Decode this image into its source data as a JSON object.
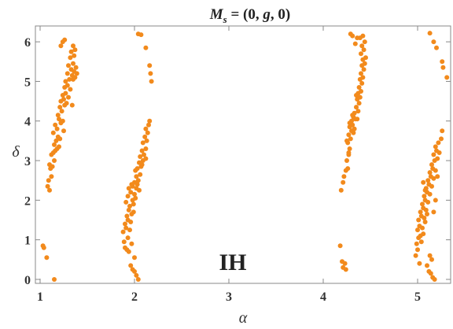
{
  "chart_data": {
    "type": "scatter",
    "title_parts": {
      "prefix": "M",
      "subscript": "s",
      "eq": " = (0, ",
      "mid": "g",
      "suffix": ", 0)"
    },
    "xlabel": "α",
    "ylabel": "δ",
    "annotation": "IH",
    "xlim": [
      0.95,
      5.35
    ],
    "ylim": [
      -0.1,
      6.4
    ],
    "xticks": [
      1,
      2,
      3,
      4,
      5
    ],
    "yticks": [
      0,
      1,
      2,
      3,
      4,
      5,
      6
    ],
    "xtick_labels": [
      "1",
      "2",
      "3",
      "4",
      "5"
    ],
    "ytick_labels": [
      "0",
      "1",
      "2",
      "3",
      "4",
      "5",
      "6"
    ],
    "grid": false,
    "marker_color": "#f28a1c",
    "frame_color": "#888888",
    "points": [
      [
        1.1,
        2.25
      ],
      [
        1.08,
        2.35
      ],
      [
        1.09,
        2.5
      ],
      [
        1.12,
        2.6
      ],
      [
        1.11,
        2.8
      ],
      [
        1.13,
        2.85
      ],
      [
        1.15,
        3.0
      ],
      [
        1.12,
        3.15
      ],
      [
        1.14,
        3.2
      ],
      [
        1.16,
        3.25
      ],
      [
        1.18,
        3.3
      ],
      [
        1.15,
        3.4
      ],
      [
        1.2,
        3.35
      ],
      [
        1.17,
        3.5
      ],
      [
        1.21,
        3.55
      ],
      [
        1.14,
        3.7
      ],
      [
        1.18,
        3.8
      ],
      [
        1.16,
        3.9
      ],
      [
        1.22,
        3.95
      ],
      [
        1.2,
        4.05
      ],
      [
        1.24,
        4.0
      ],
      [
        1.19,
        4.15
      ],
      [
        1.23,
        4.25
      ],
      [
        1.21,
        4.35
      ],
      [
        1.26,
        4.4
      ],
      [
        1.22,
        4.5
      ],
      [
        1.25,
        4.55
      ],
      [
        1.28,
        4.45
      ],
      [
        1.24,
        4.65
      ],
      [
        1.27,
        4.7
      ],
      [
        1.3,
        4.6
      ],
      [
        1.26,
        4.85
      ],
      [
        1.29,
        4.9
      ],
      [
        1.32,
        4.8
      ],
      [
        1.27,
        5.0
      ],
      [
        1.31,
        5.05
      ],
      [
        1.34,
        5.15
      ],
      [
        1.29,
        5.2
      ],
      [
        1.33,
        5.3
      ],
      [
        1.36,
        5.25
      ],
      [
        1.3,
        5.4
      ],
      [
        1.35,
        5.45
      ],
      [
        1.38,
        5.35
      ],
      [
        1.32,
        5.6
      ],
      [
        1.36,
        5.65
      ],
      [
        1.33,
        5.75
      ],
      [
        1.37,
        5.8
      ],
      [
        1.35,
        5.9
      ],
      [
        1.22,
        5.9
      ],
      [
        1.24,
        6.0
      ],
      [
        1.26,
        6.05
      ],
      [
        1.37,
        5.1
      ],
      [
        1.39,
        5.2
      ],
      [
        1.34,
        4.4
      ],
      [
        1.35,
        5.05
      ],
      [
        1.25,
        3.75
      ],
      [
        1.19,
        3.6
      ],
      [
        1.1,
        2.9
      ],
      [
        1.03,
        0.85
      ],
      [
        1.04,
        0.8
      ],
      [
        1.07,
        0.55
      ],
      [
        1.15,
        0.0
      ],
      [
        1.9,
        0.8
      ],
      [
        1.92,
        0.75
      ],
      [
        1.89,
        0.95
      ],
      [
        1.94,
        0.7
      ],
      [
        1.93,
        1.05
      ],
      [
        1.88,
        1.2
      ],
      [
        1.91,
        1.3
      ],
      [
        1.95,
        1.25
      ],
      [
        1.9,
        1.4
      ],
      [
        1.93,
        1.5
      ],
      [
        1.96,
        1.45
      ],
      [
        1.92,
        1.6
      ],
      [
        1.97,
        1.65
      ],
      [
        1.94,
        1.75
      ],
      [
        1.99,
        1.7
      ],
      [
        1.95,
        1.85
      ],
      [
        1.91,
        1.95
      ],
      [
        1.98,
        2.0
      ],
      [
        1.93,
        2.1
      ],
      [
        1.96,
        2.2
      ],
      [
        2.0,
        2.15
      ],
      [
        1.94,
        2.3
      ],
      [
        1.98,
        2.35
      ],
      [
        2.02,
        2.3
      ],
      [
        2.0,
        2.45
      ],
      [
        2.04,
        2.5
      ],
      [
        2.02,
        2.6
      ],
      [
        2.06,
        2.65
      ],
      [
        2.03,
        2.8
      ],
      [
        2.07,
        2.85
      ],
      [
        2.05,
        2.95
      ],
      [
        2.09,
        3.0
      ],
      [
        2.06,
        3.1
      ],
      [
        2.1,
        3.15
      ],
      [
        2.08,
        3.25
      ],
      [
        2.12,
        3.3
      ],
      [
        2.09,
        3.45
      ],
      [
        2.13,
        3.5
      ],
      [
        2.11,
        3.6
      ],
      [
        2.14,
        3.7
      ],
      [
        2.12,
        3.8
      ],
      [
        2.15,
        3.9
      ],
      [
        2.16,
        4.0
      ],
      [
        1.97,
        2.4
      ],
      [
        2.01,
        2.05
      ],
      [
        1.96,
        0.35
      ],
      [
        1.98,
        0.25
      ],
      [
        2.0,
        0.2
      ],
      [
        2.02,
        0.1
      ],
      [
        2.04,
        0.0
      ],
      [
        1.99,
        1.9
      ],
      [
        2.01,
        2.75
      ],
      [
        2.05,
        2.25
      ],
      [
        2.0,
        0.55
      ],
      [
        1.97,
        0.9
      ],
      [
        2.03,
        2.4
      ],
      [
        2.08,
        2.9
      ],
      [
        2.12,
        3.05
      ],
      [
        2.04,
        6.2
      ],
      [
        2.07,
        6.18
      ],
      [
        2.12,
        5.85
      ],
      [
        2.16,
        5.4
      ],
      [
        2.17,
        5.2
      ],
      [
        2.18,
        5.0
      ],
      [
        4.18,
        0.85
      ],
      [
        4.2,
        0.45
      ],
      [
        4.21,
        0.3
      ],
      [
        4.24,
        0.25
      ],
      [
        4.23,
        0.4
      ],
      [
        4.19,
        2.25
      ],
      [
        4.21,
        2.45
      ],
      [
        4.22,
        2.6
      ],
      [
        4.24,
        2.75
      ],
      [
        4.26,
        2.8
      ],
      [
        4.25,
        3.0
      ],
      [
        4.27,
        3.15
      ],
      [
        4.28,
        3.3
      ],
      [
        4.26,
        3.45
      ],
      [
        4.29,
        3.55
      ],
      [
        4.27,
        3.65
      ],
      [
        4.3,
        3.75
      ],
      [
        4.32,
        3.7
      ],
      [
        4.28,
        3.85
      ],
      [
        4.31,
        3.9
      ],
      [
        4.33,
        3.8
      ],
      [
        4.3,
        4.0
      ],
      [
        4.34,
        4.05
      ],
      [
        4.32,
        4.1
      ],
      [
        4.36,
        4.05
      ],
      [
        4.33,
        4.2
      ],
      [
        4.37,
        4.25
      ],
      [
        4.35,
        4.35
      ],
      [
        4.38,
        4.45
      ],
      [
        4.36,
        4.55
      ],
      [
        4.39,
        4.6
      ],
      [
        4.37,
        4.7
      ],
      [
        4.4,
        4.75
      ],
      [
        4.38,
        4.85
      ],
      [
        4.41,
        4.95
      ],
      [
        4.39,
        5.05
      ],
      [
        4.42,
        5.1
      ],
      [
        4.4,
        5.2
      ],
      [
        4.43,
        5.3
      ],
      [
        4.41,
        5.4
      ],
      [
        4.44,
        5.45
      ],
      [
        4.42,
        5.55
      ],
      [
        4.45,
        5.6
      ],
      [
        4.4,
        5.7
      ],
      [
        4.43,
        5.8
      ],
      [
        4.41,
        5.9
      ],
      [
        4.44,
        6.0
      ],
      [
        4.39,
        6.1
      ],
      [
        4.42,
        6.15
      ],
      [
        4.29,
        6.2
      ],
      [
        4.31,
        6.15
      ],
      [
        4.34,
        5.95
      ],
      [
        4.36,
        6.1
      ],
      [
        4.25,
        3.5
      ],
      [
        4.28,
        3.95
      ],
      [
        4.31,
        4.15
      ],
      [
        4.35,
        4.65
      ],
      [
        4.27,
        3.2
      ],
      [
        4.98,
        0.6
      ],
      [
        5.0,
        0.75
      ],
      [
        4.99,
        0.9
      ],
      [
        5.01,
        1.05
      ],
      [
        5.03,
        1.1
      ],
      [
        5.0,
        1.25
      ],
      [
        5.02,
        1.35
      ],
      [
        5.05,
        1.3
      ],
      [
        5.01,
        1.5
      ],
      [
        5.04,
        1.6
      ],
      [
        5.07,
        1.55
      ],
      [
        5.03,
        1.7
      ],
      [
        5.06,
        1.8
      ],
      [
        5.09,
        1.75
      ],
      [
        5.05,
        1.9
      ],
      [
        5.08,
        2.0
      ],
      [
        5.11,
        1.95
      ],
      [
        5.07,
        2.1
      ],
      [
        5.1,
        2.2
      ],
      [
        5.13,
        2.15
      ],
      [
        5.09,
        2.3
      ],
      [
        5.12,
        2.4
      ],
      [
        5.15,
        2.35
      ],
      [
        5.11,
        2.5
      ],
      [
        5.14,
        2.6
      ],
      [
        5.17,
        2.55
      ],
      [
        5.13,
        2.7
      ],
      [
        5.16,
        2.8
      ],
      [
        5.19,
        2.75
      ],
      [
        5.15,
        2.9
      ],
      [
        5.18,
        3.0
      ],
      [
        5.21,
        3.05
      ],
      [
        5.17,
        3.15
      ],
      [
        5.2,
        3.25
      ],
      [
        5.23,
        3.2
      ],
      [
        5.19,
        3.35
      ],
      [
        5.22,
        3.45
      ],
      [
        5.25,
        3.55
      ],
      [
        5.26,
        3.75
      ],
      [
        5.04,
        0.95
      ],
      [
        5.06,
        1.15
      ],
      [
        5.08,
        1.45
      ],
      [
        5.1,
        1.65
      ],
      [
        5.02,
        0.4
      ],
      [
        5.1,
        0.35
      ],
      [
        5.12,
        0.2
      ],
      [
        5.14,
        0.15
      ],
      [
        5.16,
        0.05
      ],
      [
        5.18,
        0.0
      ],
      [
        5.13,
        0.6
      ],
      [
        5.15,
        0.5
      ],
      [
        5.17,
        1.7
      ],
      [
        5.19,
        2.0
      ],
      [
        5.21,
        2.6
      ],
      [
        5.06,
        2.45
      ],
      [
        5.08,
        2.25
      ],
      [
        5.13,
        6.22
      ],
      [
        5.17,
        6.0
      ],
      [
        5.2,
        5.85
      ],
      [
        5.26,
        5.5
      ],
      [
        5.27,
        5.35
      ],
      [
        5.31,
        5.1
      ]
    ]
  }
}
